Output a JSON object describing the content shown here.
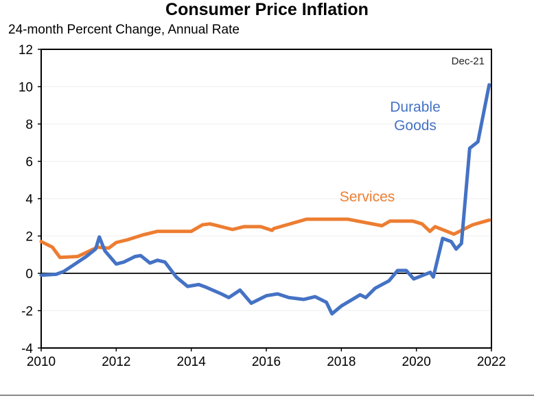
{
  "chart_data": {
    "type": "line",
    "title": "Consumer Price Inflation",
    "subtitle": "24-month Percent Change, Annual Rate",
    "annotation": "Dec-21",
    "xlim": [
      2010,
      2022
    ],
    "ylim": [
      -4,
      12
    ],
    "xticks": [
      "2010",
      "2012",
      "2014",
      "2016",
      "2018",
      "2020",
      "2022"
    ],
    "yticks": [
      "12",
      "10",
      "8",
      "6",
      "4",
      "2",
      "0",
      "-2",
      "-4"
    ],
    "grid": true,
    "series": [
      {
        "name": "Durable Goods",
        "label_lines": [
          "Durable",
          "Goods"
        ],
        "color": "#4472C4",
        "x": [
          2010.0,
          2010.4,
          2010.6,
          2010.9,
          2011.2,
          2011.45,
          2011.55,
          2011.7,
          2012.0,
          2012.2,
          2012.5,
          2012.65,
          2012.9,
          2013.1,
          2013.3,
          2013.6,
          2013.9,
          2014.2,
          2014.4,
          2014.8,
          2015.0,
          2015.3,
          2015.6,
          2016.0,
          2016.3,
          2016.6,
          2017.0,
          2017.3,
          2017.6,
          2017.75,
          2018.0,
          2018.5,
          2018.65,
          2018.9,
          2019.27,
          2019.5,
          2019.73,
          2019.93,
          2020.37,
          2020.45,
          2020.7,
          2020.93,
          2021.06,
          2021.2,
          2021.42,
          2021.64,
          2021.94
        ],
        "y": [
          -0.1,
          -0.05,
          0.1,
          0.5,
          0.9,
          1.3,
          1.95,
          1.2,
          0.5,
          0.6,
          0.9,
          0.95,
          0.55,
          0.7,
          0.6,
          -0.2,
          -0.7,
          -0.6,
          -0.75,
          -1.1,
          -1.3,
          -0.9,
          -1.6,
          -1.2,
          -1.1,
          -1.3,
          -1.4,
          -1.25,
          -1.55,
          -2.17,
          -1.75,
          -1.15,
          -1.3,
          -0.8,
          -0.4,
          0.15,
          0.15,
          -0.3,
          0.05,
          -0.2,
          1.87,
          1.7,
          1.3,
          1.6,
          6.7,
          7.05,
          10.1
        ]
      },
      {
        "name": "Services",
        "label_lines": [
          "Services"
        ],
        "color": "#ED7D31",
        "x": [
          2010.0,
          2010.3,
          2010.5,
          2010.97,
          2011.5,
          2011.8,
          2012.0,
          2012.3,
          2012.7,
          2013.1,
          2014.0,
          2014.3,
          2014.5,
          2015.1,
          2015.4,
          2015.85,
          2016.15,
          2016.2,
          2017.07,
          2018.17,
          2019.08,
          2019.3,
          2019.9,
          2020.15,
          2020.36,
          2020.5,
          2021.0,
          2021.5,
          2021.94
        ],
        "y": [
          1.7,
          1.4,
          0.85,
          0.9,
          1.4,
          1.35,
          1.65,
          1.8,
          2.05,
          2.25,
          2.25,
          2.6,
          2.65,
          2.35,
          2.5,
          2.5,
          2.3,
          2.4,
          2.9,
          2.9,
          2.55,
          2.8,
          2.8,
          2.65,
          2.25,
          2.5,
          2.1,
          2.6,
          2.85
        ]
      }
    ]
  }
}
